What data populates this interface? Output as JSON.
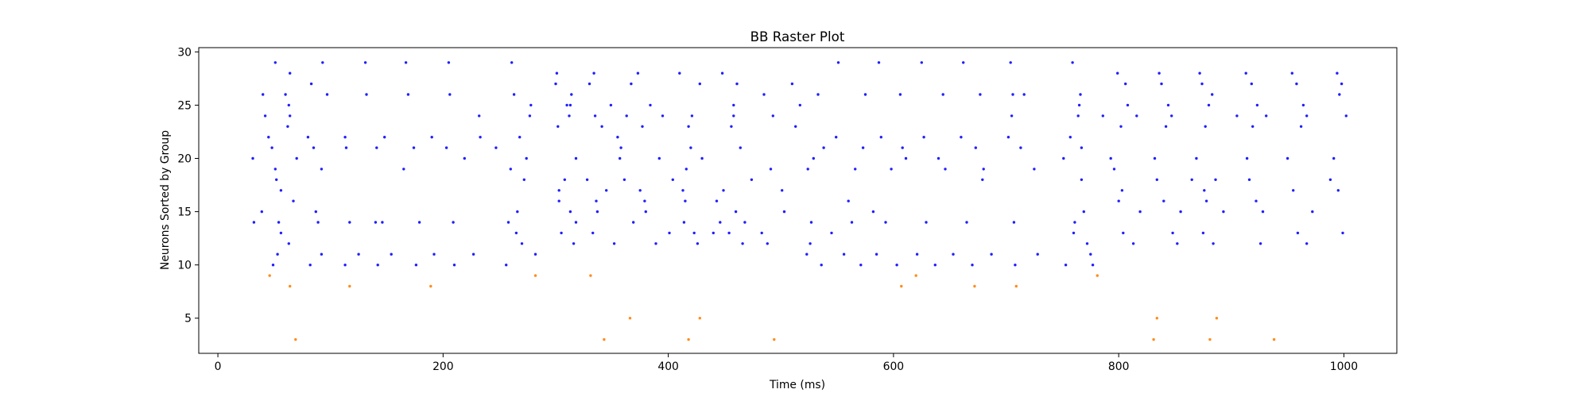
{
  "chart_data": {
    "type": "scatter",
    "title": "BB Raster Plot",
    "xlabel": "Time (ms)",
    "ylabel": "Neurons Sorted by Group",
    "xlim": [
      -17,
      1047
    ],
    "ylim": [
      1.7,
      30.4
    ],
    "xticks": [
      0,
      200,
      400,
      600,
      800,
      1000
    ],
    "yticks": [
      5,
      10,
      15,
      20,
      25,
      30
    ],
    "grid": false,
    "legend": "none",
    "series": [
      {
        "color": "#1f1fff",
        "points": [
          [
            31,
            20
          ],
          [
            32,
            14
          ],
          [
            39,
            15
          ],
          [
            40,
            26
          ],
          [
            42,
            24
          ],
          [
            45,
            22
          ],
          [
            48,
            21
          ],
          [
            49,
            10
          ],
          [
            51,
            29
          ],
          [
            51,
            19
          ],
          [
            52,
            18
          ],
          [
            53,
            11
          ],
          [
            54,
            14
          ],
          [
            56,
            17
          ],
          [
            56,
            13
          ],
          [
            60,
            26
          ],
          [
            62,
            23
          ],
          [
            63,
            12
          ],
          [
            63,
            25
          ],
          [
            64,
            28
          ],
          [
            64,
            24
          ],
          [
            67,
            16
          ],
          [
            70,
            20
          ],
          [
            80,
            22
          ],
          [
            82,
            10
          ],
          [
            83,
            27
          ],
          [
            85,
            21
          ],
          [
            87,
            15
          ],
          [
            89,
            14
          ],
          [
            92,
            11
          ],
          [
            92,
            19
          ],
          [
            93,
            29
          ],
          [
            97,
            26
          ],
          [
            113,
            22
          ],
          [
            113,
            10
          ],
          [
            114,
            21
          ],
          [
            117,
            14
          ],
          [
            125,
            11
          ],
          [
            131,
            29
          ],
          [
            132,
            26
          ],
          [
            140,
            14
          ],
          [
            141,
            21
          ],
          [
            142,
            10
          ],
          [
            146,
            14
          ],
          [
            148,
            22
          ],
          [
            154,
            11
          ],
          [
            165,
            19
          ],
          [
            167,
            29
          ],
          [
            169,
            26
          ],
          [
            174,
            21
          ],
          [
            176,
            10
          ],
          [
            179,
            14
          ],
          [
            190,
            22
          ],
          [
            192,
            11
          ],
          [
            203,
            21
          ],
          [
            205,
            29
          ],
          [
            206,
            26
          ],
          [
            210,
            10
          ],
          [
            209,
            14
          ],
          [
            219,
            20
          ],
          [
            227,
            11
          ],
          [
            233,
            22
          ],
          [
            232,
            24
          ],
          [
            247,
            21
          ],
          [
            256,
            10
          ],
          [
            258,
            14
          ],
          [
            260,
            19
          ],
          [
            261,
            29
          ],
          [
            263,
            26
          ],
          [
            265,
            13
          ],
          [
            266,
            15
          ],
          [
            268,
            22
          ],
          [
            270,
            12
          ],
          [
            272,
            18
          ],
          [
            274,
            20
          ],
          [
            277,
            24
          ],
          [
            278,
            25
          ],
          [
            282,
            11
          ],
          [
            300,
            27
          ],
          [
            301,
            28
          ],
          [
            302,
            23
          ],
          [
            303,
            17
          ],
          [
            303,
            16
          ],
          [
            305,
            13
          ],
          [
            308,
            18
          ],
          [
            310,
            25
          ],
          [
            312,
            24
          ],
          [
            313,
            15
          ],
          [
            313,
            25
          ],
          [
            314,
            26
          ],
          [
            316,
            12
          ],
          [
            318,
            20
          ],
          [
            318,
            14
          ],
          [
            328,
            18
          ],
          [
            330,
            27
          ],
          [
            333,
            13
          ],
          [
            334,
            28
          ],
          [
            335,
            24
          ],
          [
            336,
            16
          ],
          [
            337,
            15
          ],
          [
            341,
            23
          ],
          [
            345,
            17
          ],
          [
            349,
            25
          ],
          [
            352,
            12
          ],
          [
            355,
            22
          ],
          [
            357,
            20
          ],
          [
            358,
            21
          ],
          [
            361,
            18
          ],
          [
            363,
            24
          ],
          [
            367,
            27
          ],
          [
            369,
            14
          ],
          [
            373,
            28
          ],
          [
            375,
            17
          ],
          [
            377,
            23
          ],
          [
            379,
            16
          ],
          [
            380,
            15
          ],
          [
            384,
            25
          ],
          [
            389,
            12
          ],
          [
            392,
            20
          ],
          [
            395,
            24
          ],
          [
            401,
            13
          ],
          [
            404,
            18
          ],
          [
            410,
            28
          ],
          [
            413,
            17
          ],
          [
            414,
            14
          ],
          [
            415,
            16
          ],
          [
            416,
            19
          ],
          [
            418,
            23
          ],
          [
            420,
            21
          ],
          [
            421,
            24
          ],
          [
            423,
            13
          ],
          [
            426,
            12
          ],
          [
            428,
            27
          ],
          [
            430,
            20
          ],
          [
            440,
            13
          ],
          [
            443,
            16
          ],
          [
            446,
            14
          ],
          [
            448,
            28
          ],
          [
            449,
            17
          ],
          [
            454,
            13
          ],
          [
            456,
            23
          ],
          [
            458,
            24
          ],
          [
            458,
            25
          ],
          [
            460,
            15
          ],
          [
            461,
            27
          ],
          [
            464,
            21
          ],
          [
            466,
            12
          ],
          [
            468,
            14
          ],
          [
            474,
            18
          ],
          [
            483,
            13
          ],
          [
            485,
            26
          ],
          [
            488,
            12
          ],
          [
            491,
            19
          ],
          [
            493,
            24
          ],
          [
            501,
            17
          ],
          [
            503,
            15
          ],
          [
            510,
            27
          ],
          [
            513,
            23
          ],
          [
            517,
            25
          ],
          [
            523,
            11
          ],
          [
            524,
            19
          ],
          [
            526,
            12
          ],
          [
            527,
            14
          ],
          [
            529,
            20
          ],
          [
            533,
            26
          ],
          [
            536,
            10
          ],
          [
            538,
            21
          ],
          [
            545,
            13
          ],
          [
            549,
            22
          ],
          [
            551,
            29
          ],
          [
            556,
            11
          ],
          [
            560,
            16
          ],
          [
            563,
            14
          ],
          [
            566,
            19
          ],
          [
            571,
            10
          ],
          [
            573,
            21
          ],
          [
            575,
            26
          ],
          [
            582,
            15
          ],
          [
            585,
            11
          ],
          [
            587,
            29
          ],
          [
            589,
            22
          ],
          [
            593,
            14
          ],
          [
            598,
            19
          ],
          [
            603,
            10
          ],
          [
            606,
            26
          ],
          [
            608,
            21
          ],
          [
            611,
            20
          ],
          [
            621,
            11
          ],
          [
            625,
            29
          ],
          [
            627,
            22
          ],
          [
            629,
            14
          ],
          [
            637,
            10
          ],
          [
            640,
            20
          ],
          [
            644,
            26
          ],
          [
            646,
            19
          ],
          [
            653,
            11
          ],
          [
            660,
            22
          ],
          [
            662,
            29
          ],
          [
            665,
            14
          ],
          [
            670,
            10
          ],
          [
            673,
            21
          ],
          [
            677,
            26
          ],
          [
            679,
            18
          ],
          [
            680,
            19
          ],
          [
            687,
            11
          ],
          [
            702,
            22
          ],
          [
            704,
            29
          ],
          [
            705,
            24
          ],
          [
            706,
            26
          ],
          [
            708,
            10
          ],
          [
            707,
            14
          ],
          [
            713,
            21
          ],
          [
            716,
            26
          ],
          [
            725,
            19
          ],
          [
            728,
            11
          ],
          [
            751,
            20
          ],
          [
            753,
            10
          ],
          [
            757,
            22
          ],
          [
            759,
            29
          ],
          [
            760,
            13
          ],
          [
            761,
            14
          ],
          [
            764,
            24
          ],
          [
            765,
            25
          ],
          [
            766,
            26
          ],
          [
            767,
            21
          ],
          [
            767,
            18
          ],
          [
            769,
            15
          ],
          [
            772,
            12
          ],
          [
            775,
            11
          ],
          [
            777,
            10
          ],
          [
            786,
            24
          ],
          [
            793,
            20
          ],
          [
            796,
            19
          ],
          [
            799,
            28
          ],
          [
            800,
            16
          ],
          [
            802,
            23
          ],
          [
            803,
            17
          ],
          [
            804,
            13
          ],
          [
            806,
            27
          ],
          [
            808,
            25
          ],
          [
            813,
            12
          ],
          [
            816,
            24
          ],
          [
            819,
            15
          ],
          [
            832,
            20
          ],
          [
            834,
            18
          ],
          [
            836,
            28
          ],
          [
            838,
            27
          ],
          [
            840,
            16
          ],
          [
            842,
            23
          ],
          [
            844,
            25
          ],
          [
            847,
            24
          ],
          [
            848,
            13
          ],
          [
            852,
            12
          ],
          [
            855,
            15
          ],
          [
            865,
            18
          ],
          [
            869,
            20
          ],
          [
            872,
            28
          ],
          [
            874,
            27
          ],
          [
            875,
            13
          ],
          [
            877,
            23
          ],
          [
            876,
            17
          ],
          [
            878,
            16
          ],
          [
            880,
            25
          ],
          [
            883,
            26
          ],
          [
            884,
            12
          ],
          [
            886,
            18
          ],
          [
            893,
            15
          ],
          [
            905,
            24
          ],
          [
            913,
            28
          ],
          [
            914,
            20
          ],
          [
            916,
            18
          ],
          [
            918,
            27
          ],
          [
            919,
            23
          ],
          [
            922,
            16
          ],
          [
            923,
            25
          ],
          [
            926,
            12
          ],
          [
            928,
            15
          ],
          [
            931,
            24
          ],
          [
            950,
            20
          ],
          [
            954,
            28
          ],
          [
            955,
            17
          ],
          [
            958,
            27
          ],
          [
            959,
            13
          ],
          [
            962,
            23
          ],
          [
            964,
            25
          ],
          [
            967,
            24
          ],
          [
            967,
            12
          ],
          [
            972,
            15
          ],
          [
            988,
            18
          ],
          [
            991,
            20
          ],
          [
            994,
            28
          ],
          [
            995,
            17
          ],
          [
            996,
            26
          ],
          [
            998,
            27
          ],
          [
            999,
            13
          ],
          [
            1002,
            24
          ]
        ]
      },
      {
        "color": "#ff8c1a",
        "points": [
          [
            46,
            9
          ],
          [
            64,
            8
          ],
          [
            69,
            3
          ],
          [
            117,
            8
          ],
          [
            189,
            8
          ],
          [
            282,
            9
          ],
          [
            331,
            9
          ],
          [
            343,
            3
          ],
          [
            366,
            5
          ],
          [
            418,
            3
          ],
          [
            428,
            5
          ],
          [
            494,
            3
          ],
          [
            607,
            8
          ],
          [
            620,
            9
          ],
          [
            672,
            8
          ],
          [
            709,
            8
          ],
          [
            781,
            9
          ],
          [
            831,
            3
          ],
          [
            834,
            5
          ],
          [
            881,
            3
          ],
          [
            887,
            5
          ],
          [
            938,
            3
          ]
        ]
      }
    ]
  }
}
